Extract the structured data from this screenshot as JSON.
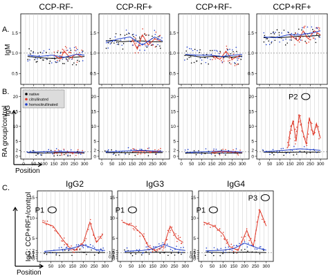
{
  "figure": {
    "panel_letters": [
      "A.",
      "B.",
      "C."
    ],
    "position_label": "Position",
    "b_side_label": "RA group/control",
    "c_side_label": "IgG: CCP+RF+/control",
    "colors": {
      "native": "#000000",
      "citrullinated": "#e03a2a",
      "homocitrullinated": "#1f3fcc",
      "grid": "#c8c8c8"
    }
  },
  "chart_data": [
    {
      "panel": "A",
      "type": "scatter",
      "ylabel": "IgM",
      "subplot_titles": [
        "CCP-RF-",
        "CCP-RF+",
        "CCP+RF-",
        "CCP+RF+"
      ],
      "x_ticks": [
        "0",
        "50",
        "100",
        "150",
        "200",
        "250",
        "300"
      ],
      "y_ticks": [
        "0.5",
        "1.0",
        "1.5"
      ],
      "xlim": [
        0,
        320
      ],
      "ylim": [
        0.3,
        1.9
      ],
      "series": [
        {
          "name": "native",
          "values_per_subplot": [
            [
              [
                20,
                0.92
              ],
              [
                60,
                0.9
              ],
              [
                100,
                0.88
              ],
              [
                150,
                0.87
              ],
              [
                200,
                0.9
              ],
              [
                250,
                0.9
              ],
              [
                300,
                0.92
              ]
            ],
            [
              [
                20,
                1.3
              ],
              [
                60,
                1.32
              ],
              [
                100,
                1.28
              ],
              [
                150,
                1.3
              ],
              [
                200,
                1.3
              ],
              [
                250,
                1.28
              ],
              [
                300,
                1.28
              ]
            ],
            [
              [
                20,
                0.95
              ],
              [
                60,
                0.93
              ],
              [
                100,
                0.9
              ],
              [
                150,
                0.92
              ],
              [
                200,
                0.92
              ],
              [
                250,
                0.9
              ],
              [
                300,
                0.93
              ]
            ],
            [
              [
                20,
                1.38
              ],
              [
                60,
                1.4
              ],
              [
                100,
                1.38
              ],
              [
                150,
                1.4
              ],
              [
                200,
                1.42
              ],
              [
                250,
                1.42
              ],
              [
                300,
                1.44
              ]
            ]
          ]
        },
        {
          "name": "citrullinated",
          "values_per_subplot": [
            [
              [
                150,
                0.95
              ],
              [
                180,
                0.85
              ],
              [
                200,
                1.05
              ],
              [
                230,
                0.88
              ],
              [
                260,
                0.98
              ],
              [
                290,
                0.9
              ]
            ],
            [
              [
                150,
                1.35
              ],
              [
                175,
                1.1
              ],
              [
                200,
                1.45
              ],
              [
                230,
                1.2
              ],
              [
                260,
                1.35
              ],
              [
                290,
                1.3
              ]
            ],
            [
              [
                150,
                0.95
              ],
              [
                190,
                0.85
              ],
              [
                220,
                1.05
              ],
              [
                250,
                0.85
              ],
              [
                290,
                0.95
              ]
            ],
            [
              [
                150,
                1.45
              ],
              [
                190,
                1.3
              ],
              [
                215,
                1.55
              ],
              [
                240,
                1.35
              ],
              [
                270,
                1.55
              ],
              [
                300,
                1.45
              ]
            ]
          ]
        },
        {
          "name": "homocitrullinated",
          "values_per_subplot": [
            [
              [
                20,
                0.95
              ],
              [
                80,
                0.92
              ],
              [
                140,
                0.95
              ],
              [
                200,
                0.9
              ],
              [
                260,
                0.97
              ],
              [
                300,
                0.95
              ]
            ],
            [
              [
                20,
                1.25
              ],
              [
                80,
                1.35
              ],
              [
                140,
                1.4
              ],
              [
                200,
                1.2
              ],
              [
                260,
                1.4
              ],
              [
                300,
                1.3
              ]
            ],
            [
              [
                20,
                0.97
              ],
              [
                80,
                0.95
              ],
              [
                140,
                0.95
              ],
              [
                200,
                0.92
              ],
              [
                260,
                0.95
              ],
              [
                300,
                0.97
              ]
            ],
            [
              [
                20,
                1.4
              ],
              [
                80,
                1.38
              ],
              [
                140,
                1.45
              ],
              [
                200,
                1.45
              ],
              [
                260,
                1.5
              ],
              [
                300,
                1.55
              ]
            ]
          ]
        }
      ]
    },
    {
      "panel": "B",
      "type": "scatter",
      "ylabel": "IgG",
      "subplot_titles": [
        "",
        "",
        "",
        ""
      ],
      "x_ticks": [
        "0",
        "50",
        "100",
        "150",
        "200",
        "250",
        "300"
      ],
      "y_ticks": [
        "0",
        "2",
        "5",
        "10",
        "15",
        "20"
      ],
      "xlim": [
        0,
        320
      ],
      "ylim": [
        0,
        22
      ],
      "legend": [
        "native",
        "citrullinated",
        "homocitrullinated"
      ],
      "legend_position": "top-left of first subplot",
      "annotations": [
        {
          "text": "P2",
          "subplot": 4,
          "x": 200,
          "y": 20
        }
      ],
      "series": [
        {
          "name": "native",
          "values_per_subplot": [
            [
              [
                20,
                1.2
              ],
              [
                100,
                1.1
              ],
              [
                200,
                1.2
              ],
              [
                300,
                1.1
              ]
            ],
            [
              [
                20,
                1.2
              ],
              [
                100,
                1.2
              ],
              [
                200,
                1.2
              ],
              [
                300,
                1.2
              ]
            ],
            [
              [
                20,
                1.1
              ],
              [
                100,
                1.1
              ],
              [
                200,
                1.1
              ],
              [
                300,
                1.1
              ]
            ],
            [
              [
                20,
                1.4
              ],
              [
                100,
                1.3
              ],
              [
                200,
                1.4
              ],
              [
                300,
                1.4
              ]
            ]
          ]
        },
        {
          "name": "citrullinated",
          "values_per_subplot": [
            [
              [
                150,
                1.4
              ],
              [
                200,
                1.5
              ],
              [
                250,
                1.3
              ],
              [
                300,
                1.4
              ]
            ],
            [
              [
                150,
                1.5
              ],
              [
                200,
                1.8
              ],
              [
                250,
                1.5
              ],
              [
                300,
                1.6
              ]
            ],
            [
              [
                150,
                1.3
              ],
              [
                200,
                1.6
              ],
              [
                250,
                1.4
              ],
              [
                300,
                1.3
              ]
            ],
            [
              [
                140,
                3
              ],
              [
                150,
                8
              ],
              [
                165,
                12
              ],
              [
                180,
                5
              ],
              [
                195,
                14
              ],
              [
                210,
                9
              ],
              [
                230,
                4
              ],
              [
                245,
                13
              ],
              [
                265,
                7
              ],
              [
                280,
                11
              ],
              [
                300,
                6
              ]
            ]
          ]
        },
        {
          "name": "homocitrullinated",
          "values_per_subplot": [
            [
              [
                20,
                1.3
              ],
              [
                120,
                1.6
              ],
              [
                200,
                1.5
              ],
              [
                300,
                1.4
              ]
            ],
            [
              [
                20,
                1.4
              ],
              [
                120,
                1.8
              ],
              [
                200,
                2.0
              ],
              [
                300,
                1.6
              ]
            ],
            [
              [
                20,
                1.3
              ],
              [
                120,
                1.5
              ],
              [
                200,
                1.8
              ],
              [
                300,
                1.4
              ]
            ],
            [
              [
                20,
                1.5
              ],
              [
                120,
                2.0
              ],
              [
                200,
                2.5
              ],
              [
                300,
                2.0
              ]
            ]
          ]
        }
      ]
    },
    {
      "panel": "C",
      "type": "scatter",
      "ylabel": "IgG: CCP+RF+/control",
      "subplot_titles": [
        "IgG2",
        "IgG3",
        "IgG4"
      ],
      "x_ticks": [
        "0",
        "50",
        "100",
        "150",
        "200",
        "250",
        "300"
      ],
      "y_ticks": [
        "0",
        "0.5",
        "1",
        "1.5",
        "2",
        "5",
        "10",
        "15"
      ],
      "xlim": [
        0,
        320
      ],
      "ylim": [
        0,
        16
      ],
      "annotations": [
        {
          "text": "P1",
          "subplot": 1,
          "x": 30,
          "y": 12
        },
        {
          "text": "P1",
          "subplot": 2,
          "x": 30,
          "y": 12
        },
        {
          "text": "P1",
          "subplot": 3,
          "x": 30,
          "y": 12
        },
        {
          "text": "P3",
          "subplot": 3,
          "x": 270,
          "y": 15
        }
      ],
      "series": [
        {
          "name": "native",
          "values_per_subplot": [
            [
              [
                20,
                1.5
              ],
              [
                100,
                1.5
              ],
              [
                200,
                1.6
              ],
              [
                300,
                1.5
              ]
            ],
            [
              [
                20,
                1.5
              ],
              [
                100,
                1.5
              ],
              [
                200,
                1.6
              ],
              [
                300,
                1.5
              ]
            ],
            [
              [
                20,
                1.6
              ],
              [
                100,
                1.5
              ],
              [
                200,
                1.6
              ],
              [
                300,
                1.5
              ]
            ]
          ]
        },
        {
          "name": "citrullinated",
          "values_per_subplot": [
            [
              [
                10,
                9
              ],
              [
                60,
                8
              ],
              [
                100,
                5
              ],
              [
                130,
                3
              ],
              [
                160,
                2
              ],
              [
                200,
                4
              ],
              [
                230,
                9
              ],
              [
                260,
                4
              ],
              [
                290,
                6
              ]
            ],
            [
              [
                10,
                9
              ],
              [
                60,
                8
              ],
              [
                100,
                6
              ],
              [
                130,
                3
              ],
              [
                160,
                2
              ],
              [
                200,
                3
              ],
              [
                230,
                8
              ],
              [
                260,
                5
              ],
              [
                290,
                4
              ]
            ],
            [
              [
                10,
                9
              ],
              [
                60,
                8
              ],
              [
                100,
                6
              ],
              [
                130,
                3
              ],
              [
                170,
                2
              ],
              [
                210,
                7
              ],
              [
                240,
                3
              ],
              [
                270,
                12
              ],
              [
                300,
                8
              ]
            ]
          ]
        },
        {
          "name": "homocitrullinated",
          "values_per_subplot": [
            [
              [
                20,
                1.8
              ],
              [
                100,
                2.2
              ],
              [
                150,
                2.6
              ],
              [
                200,
                3.4
              ],
              [
                260,
                2.2
              ],
              [
                300,
                2.0
              ]
            ],
            [
              [
                20,
                1.8
              ],
              [
                100,
                2.0
              ],
              [
                150,
                2.4
              ],
              [
                200,
                3.5
              ],
              [
                260,
                2.3
              ],
              [
                300,
                2.0
              ]
            ],
            [
              [
                20,
                1.9
              ],
              [
                100,
                2.1
              ],
              [
                150,
                2.5
              ],
              [
                200,
                3.8
              ],
              [
                260,
                2.6
              ],
              [
                300,
                2.1
              ]
            ]
          ]
        }
      ]
    }
  ]
}
